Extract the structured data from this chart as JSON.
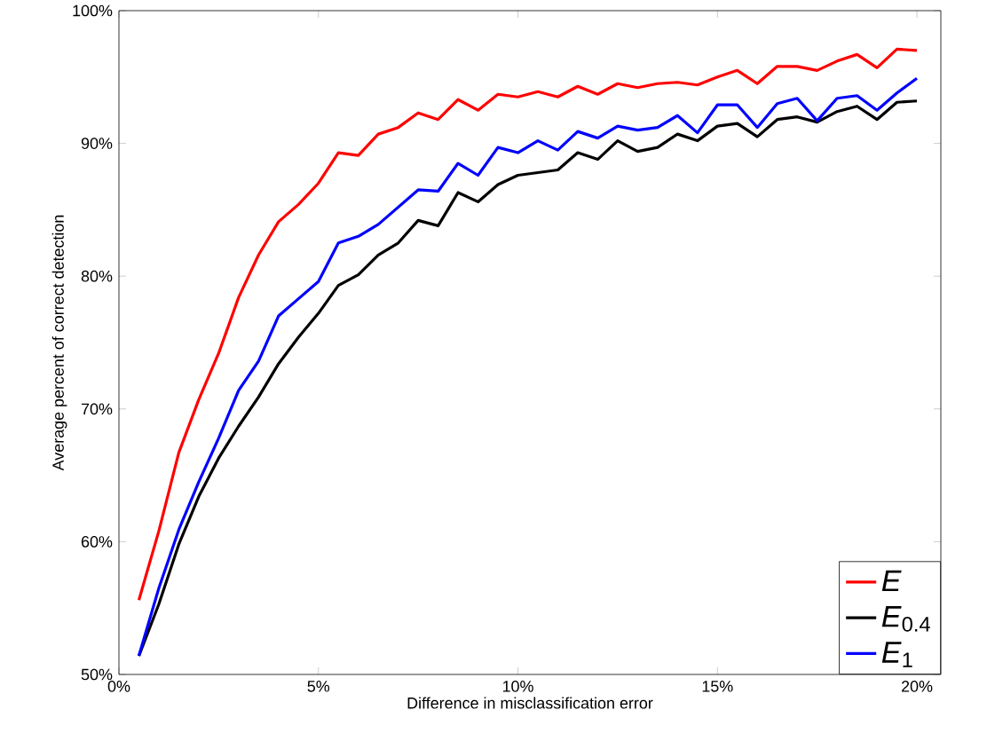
{
  "chart_data": {
    "type": "line",
    "xlabel": "Difference in misclassification error",
    "ylabel": "Average percent of correct detection",
    "x": [
      0.5,
      1,
      1.5,
      2,
      2.5,
      3,
      3.5,
      4,
      4.5,
      5,
      5.5,
      6,
      6.5,
      7,
      7.5,
      8,
      8.5,
      9,
      9.5,
      10,
      10.5,
      11,
      11.5,
      12,
      12.5,
      13,
      13.5,
      14,
      14.5,
      15,
      15.5,
      16,
      16.5,
      17,
      17.5,
      18,
      18.5,
      19,
      19.5,
      20
    ],
    "series": [
      {
        "name": "*E*",
        "color": "#ff0000",
        "values": [
          55.6,
          60.8,
          66.7,
          70.7,
          74.2,
          78.4,
          81.6,
          84.1,
          85.4,
          87.0,
          89.3,
          89.1,
          90.7,
          91.2,
          92.3,
          91.8,
          93.3,
          92.5,
          93.7,
          93.5,
          93.9,
          93.5,
          94.3,
          93.7,
          94.5,
          94.2,
          94.5,
          94.6,
          94.4,
          95.0,
          95.5,
          94.5,
          95.8,
          95.8,
          95.5,
          96.2,
          96.7,
          95.7,
          97.1,
          97.0
        ]
      },
      {
        "name": "*E*$_{0.4}$",
        "color": "#000000",
        "values": [
          51.4,
          55.3,
          59.8,
          63.4,
          66.3,
          68.7,
          70.9,
          73.4,
          75.4,
          77.2,
          79.3,
          80.1,
          81.6,
          82.5,
          84.2,
          83.8,
          86.3,
          85.6,
          86.9,
          87.6,
          87.8,
          88.0,
          89.3,
          88.8,
          90.2,
          89.4,
          89.7,
          90.7,
          90.2,
          91.3,
          91.5,
          90.5,
          91.8,
          92.0,
          91.6,
          92.4,
          92.8,
          91.8,
          93.1,
          93.2
        ]
      },
      {
        "name": "*E*$_{1}$",
        "color": "#0000ff",
        "values": [
          51.4,
          56.5,
          60.9,
          64.5,
          67.8,
          71.4,
          73.6,
          77.0,
          78.3,
          79.6,
          82.5,
          83.0,
          83.9,
          85.2,
          86.5,
          86.4,
          88.5,
          87.6,
          89.7,
          89.3,
          90.2,
          89.5,
          90.9,
          90.4,
          91.3,
          91.0,
          91.2,
          92.1,
          90.8,
          92.9,
          92.9,
          91.2,
          93.0,
          93.4,
          91.7,
          93.4,
          93.6,
          92.5,
          93.8,
          94.9
        ]
      }
    ],
    "xlim": [
      0,
      20.6
    ],
    "ylim": [
      50,
      100
    ],
    "xticks": [
      {
        "value": 0,
        "label": "0%"
      },
      {
        "value": 5,
        "label": "5%"
      },
      {
        "value": 10,
        "label": "10%"
      },
      {
        "value": 15,
        "label": "15%"
      },
      {
        "value": 20,
        "label": "20%"
      }
    ],
    "yticks": [
      {
        "value": 50,
        "label": "50%"
      },
      {
        "value": 60,
        "label": "60%"
      },
      {
        "value": 70,
        "label": "70%"
      },
      {
        "value": 80,
        "label": "80%"
      },
      {
        "value": 90,
        "label": "90%"
      },
      {
        "value": 100,
        "label": "100%"
      }
    ],
    "legend": "bottom right",
    "grid": false,
    "marker": "none",
    "line_style": "solid"
  }
}
